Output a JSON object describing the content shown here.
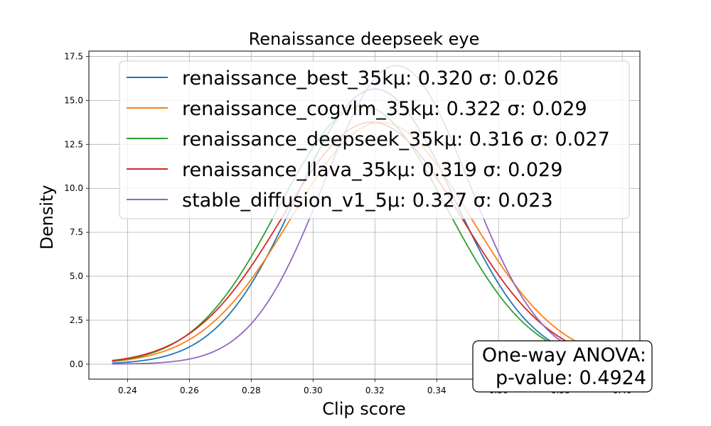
{
  "chart_data": {
    "type": "line",
    "title": "Renaissance deepseek eye",
    "xlabel": "Clip score",
    "ylabel": "Density",
    "xlim": [
      0.2275,
      0.4057
    ],
    "ylim": [
      -0.85,
      17.8
    ],
    "x_range": [
      0.235,
      0.4
    ],
    "x_ticks": [
      "0.24",
      "0.26",
      "0.28",
      "0.30",
      "0.32",
      "0.34",
      "0.36",
      "0.38",
      "0.40"
    ],
    "y_ticks": [
      "0.0",
      "2.5",
      "5.0",
      "7.5",
      "10.0",
      "12.5",
      "15.0",
      "17.5"
    ],
    "grid": true,
    "legend_position": "top",
    "series": [
      {
        "name": "renaissance_best_35k",
        "label": "renaissance_best_35kμ: 0.320 σ: 0.026",
        "mean": 0.32,
        "std": 0.0255,
        "color": "#1f77b4"
      },
      {
        "name": "renaissance_cogvlm_35k",
        "label": "renaissance_cogvlm_35kμ: 0.322 σ: 0.029",
        "mean": 0.322,
        "std": 0.029,
        "color": "#ff7f0e"
      },
      {
        "name": "renaissance_deepseek_35k",
        "label": "renaissance_deepseek_35kμ: 0.316 σ: 0.027",
        "mean": 0.316,
        "std": 0.0272,
        "color": "#2ca02c"
      },
      {
        "name": "renaissance_llava_35k",
        "label": "renaissance_llava_35kμ: 0.319 σ: 0.029",
        "mean": 0.319,
        "std": 0.029,
        "color": "#d62728"
      },
      {
        "name": "stable_diffusion_v1_5",
        "label": "stable_diffusion_v1_5μ: 0.327 σ: 0.023",
        "mean": 0.327,
        "std": 0.0235,
        "color": "#9467bd"
      }
    ],
    "annotation": {
      "line1": "One-way ANOVA:",
      "line2": "p-value: 0.4924",
      "position": "bottom-right"
    }
  }
}
